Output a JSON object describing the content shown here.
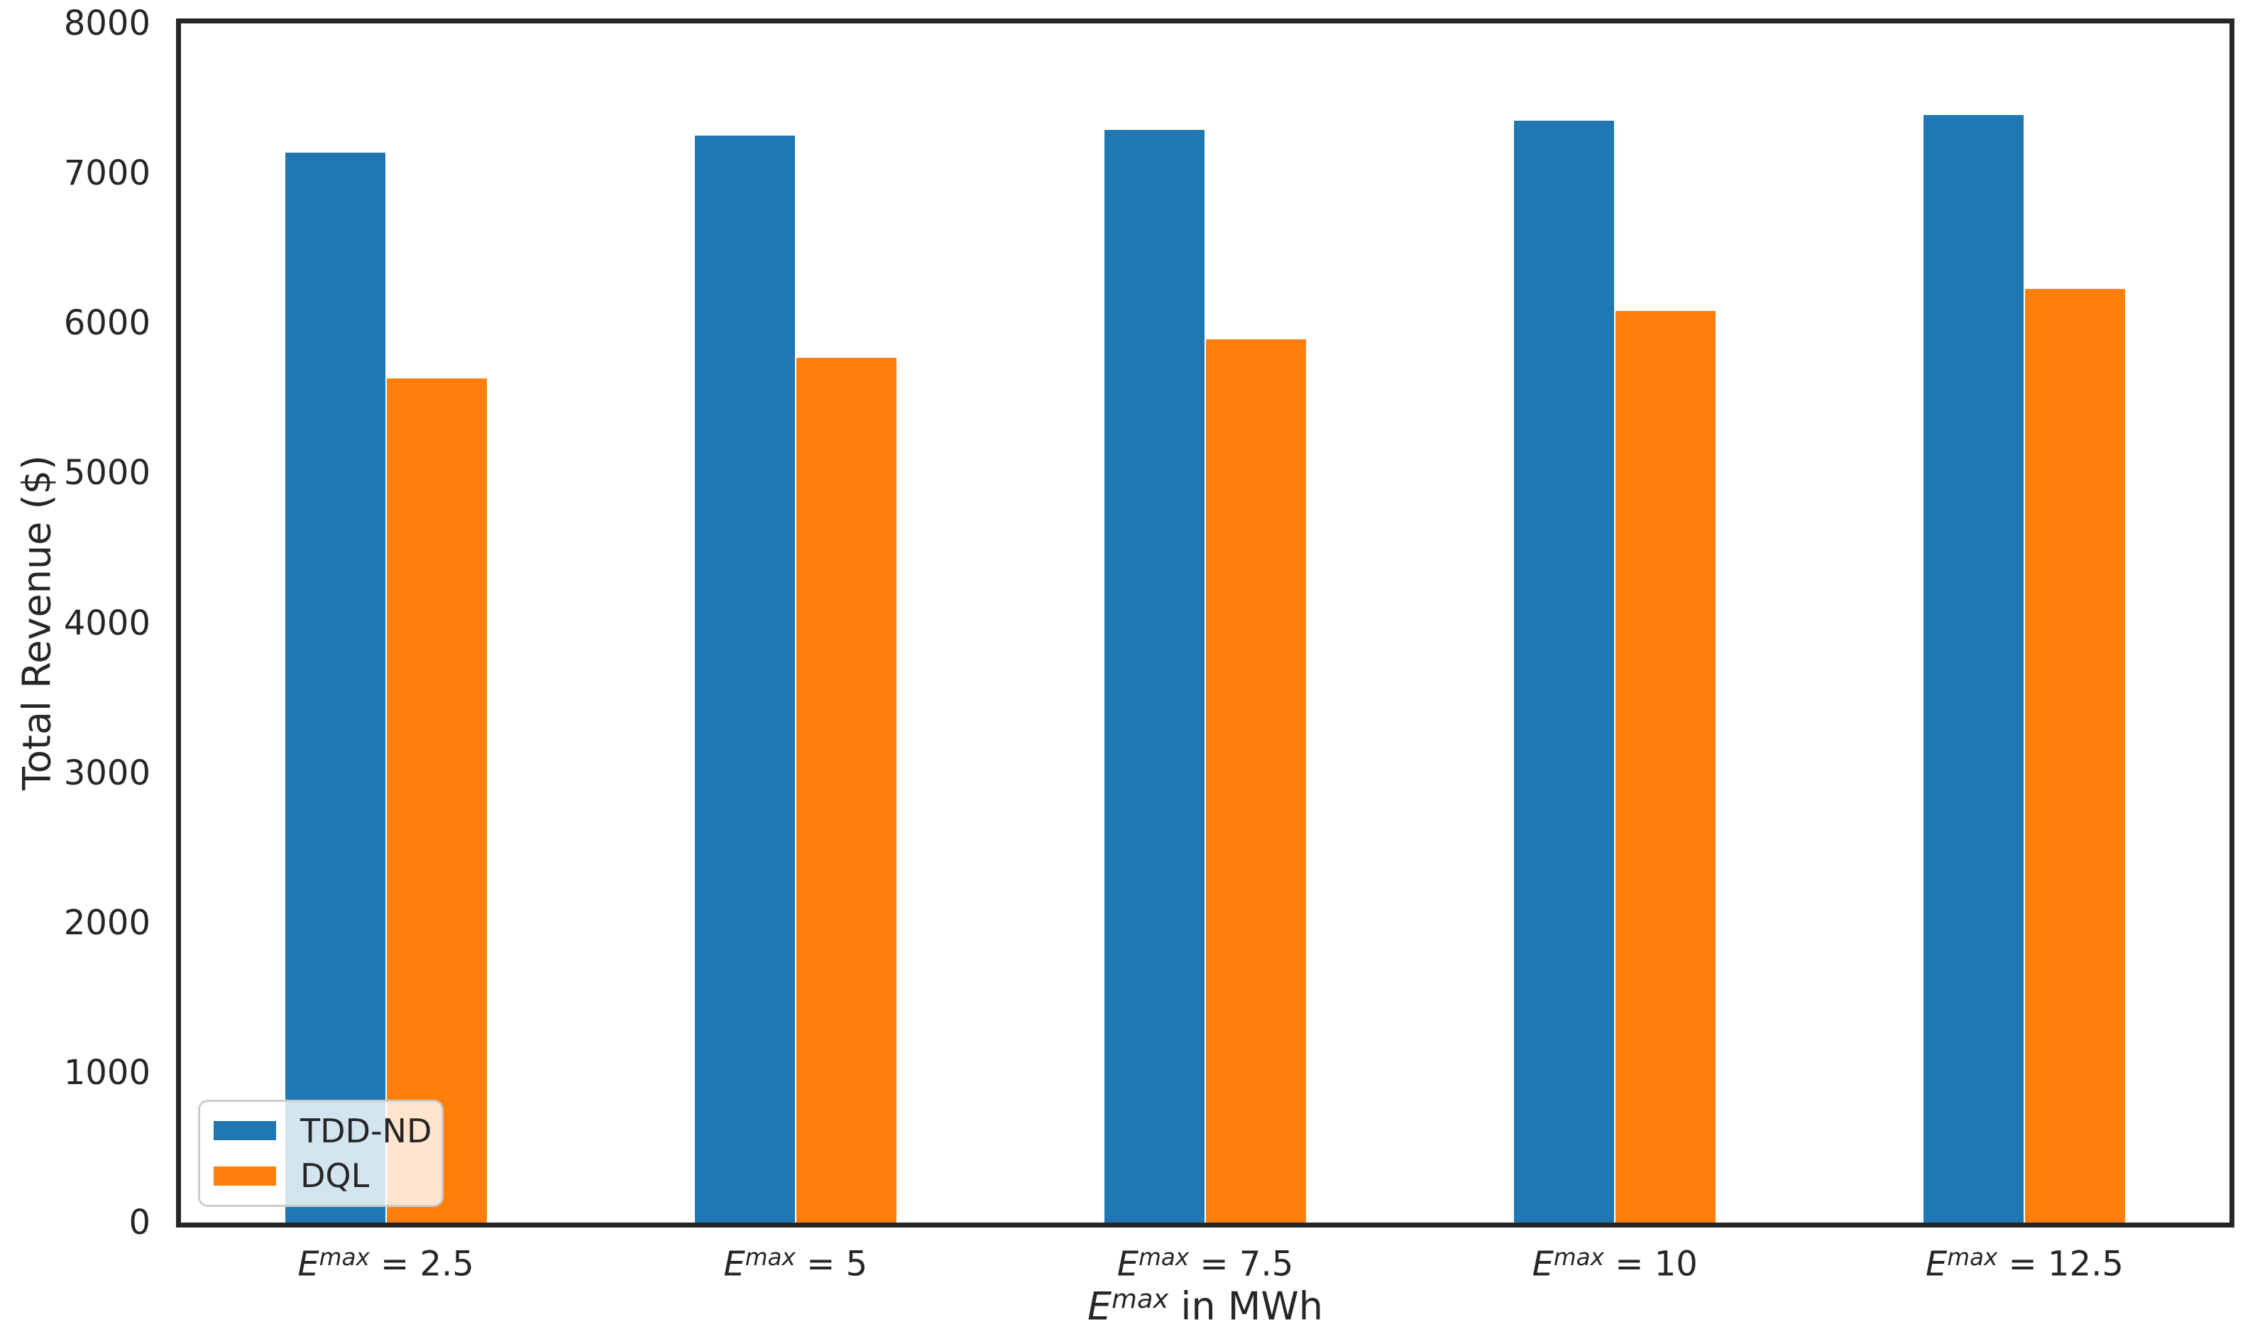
{
  "figure": {
    "background": "#ffffff"
  },
  "chart_data": {
    "type": "bar",
    "title": "",
    "xlabel": "E^max in MWh",
    "xlabel_math": {
      "symbol": "E",
      "superscript": "max",
      "suffix": " in MWh"
    },
    "ylabel": "Total Revenue ($)",
    "categories": [
      "E^max = 2.5",
      "E^max = 5",
      "E^max = 7.5",
      "E^max = 10",
      "E^max = 12.5"
    ],
    "xtick_math": {
      "symbol": "E",
      "superscript": "max",
      "equals": " = "
    },
    "xtick_values": [
      "2.5",
      "5",
      "7.5",
      "10",
      "12.5"
    ],
    "yticks": [
      0,
      1000,
      2000,
      3000,
      4000,
      5000,
      6000,
      7000,
      8000
    ],
    "ylim": [
      0,
      8000
    ],
    "grid": false,
    "legend": {
      "position": "lower left",
      "entries": [
        "TDD-ND",
        "DQL"
      ]
    },
    "series": [
      {
        "name": "TDD-ND",
        "color": "#1f77b4",
        "values": [
          7140,
          7250,
          7290,
          7350,
          7390
        ]
      },
      {
        "name": "DQL",
        "color": "#ff7f0e",
        "values": [
          5630,
          5770,
          5890,
          6080,
          6230
        ]
      }
    ],
    "colors": {
      "tdd_nd": "#1f77b4",
      "dql": "#ff7f0e",
      "text": "#262626",
      "spine": "#262626",
      "legend_border": "#cccccc"
    }
  }
}
